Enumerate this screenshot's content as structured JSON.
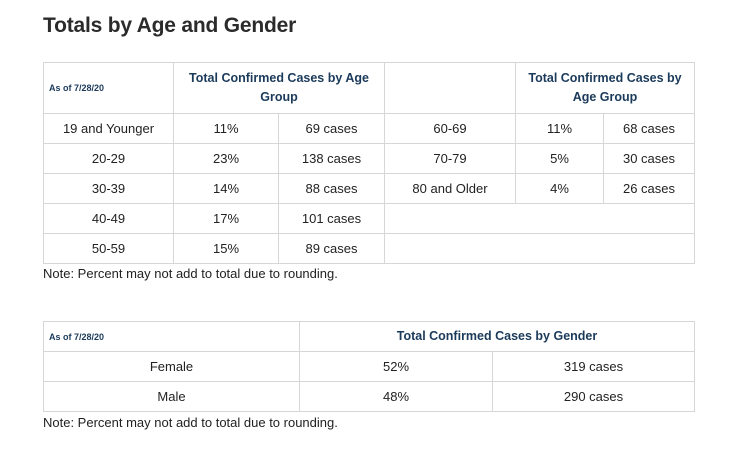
{
  "title": "Totals by Age and Gender",
  "age_table": {
    "as_of": "As of 7/28/20",
    "header_left": "Total Confirmed Cases by Age Group",
    "header_right": "Total Confirmed Cases by Age Group",
    "rows": [
      {
        "group": "19 and Younger",
        "pct": "11%",
        "cases": "69 cases"
      },
      {
        "group": "20-29",
        "pct": "23%",
        "cases": "138 cases"
      },
      {
        "group": "30-39",
        "pct": "14%",
        "cases": "88 cases"
      },
      {
        "group": "40-49",
        "pct": "17%",
        "cases": "101 cases"
      },
      {
        "group": "50-59",
        "pct": "15%",
        "cases": "89 cases"
      }
    ],
    "rows_right": [
      {
        "group": "60-69",
        "pct": "11%",
        "cases": "68 cases"
      },
      {
        "group": "70-79",
        "pct": "5%",
        "cases": "30 cases"
      },
      {
        "group": "80 and Older",
        "pct": "4%",
        "cases": "26 cases"
      }
    ]
  },
  "age_note": "Note: Percent may not add to total due to rounding.",
  "gender_table": {
    "as_of": "As of 7/28/20",
    "header": "Total Confirmed Cases by Gender",
    "rows": [
      {
        "gender": "Female",
        "pct": "52%",
        "cases": "319 cases"
      },
      {
        "gender": "Male",
        "pct": "48%",
        "cases": "290 cases"
      }
    ]
  },
  "gender_note": "Note: Percent may not add to total due to rounding."
}
